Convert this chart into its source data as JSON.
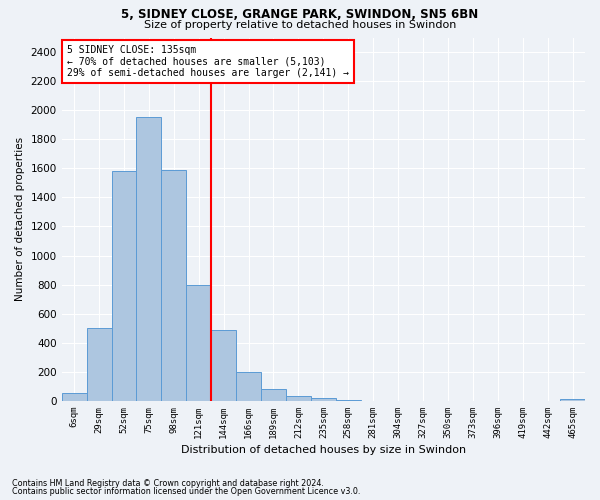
{
  "title1": "5, SIDNEY CLOSE, GRANGE PARK, SWINDON, SN5 6BN",
  "title2": "Size of property relative to detached houses in Swindon",
  "xlabel": "Distribution of detached houses by size in Swindon",
  "ylabel": "Number of detached properties",
  "footnote1": "Contains HM Land Registry data © Crown copyright and database right 2024.",
  "footnote2": "Contains public sector information licensed under the Open Government Licence v3.0.",
  "annotation_line1": "5 SIDNEY CLOSE: 135sqm",
  "annotation_line2": "← 70% of detached houses are smaller (5,103)",
  "annotation_line3": "29% of semi-detached houses are larger (2,141) →",
  "bar_color": "#adc6e0",
  "bar_edge_color": "#5b9bd5",
  "vline_color": "red",
  "categories": [
    "6sqm",
    "29sqm",
    "52sqm",
    "75sqm",
    "98sqm",
    "121sqm",
    "144sqm",
    "166sqm",
    "189sqm",
    "212sqm",
    "235sqm",
    "258sqm",
    "281sqm",
    "304sqm",
    "327sqm",
    "350sqm",
    "373sqm",
    "396sqm",
    "419sqm",
    "442sqm",
    "465sqm"
  ],
  "values": [
    55,
    500,
    1580,
    1950,
    1590,
    800,
    490,
    200,
    85,
    35,
    22,
    5,
    3,
    2,
    2,
    1,
    1,
    1,
    1,
    1,
    15
  ],
  "ylim": [
    0,
    2500
  ],
  "yticks": [
    0,
    200,
    400,
    600,
    800,
    1000,
    1200,
    1400,
    1600,
    1800,
    2000,
    2200,
    2400
  ],
  "vline_x": 5.5,
  "background_color": "#eef2f7",
  "grid_color": "#ffffff",
  "fig_width": 6.0,
  "fig_height": 5.0,
  "dpi": 100
}
